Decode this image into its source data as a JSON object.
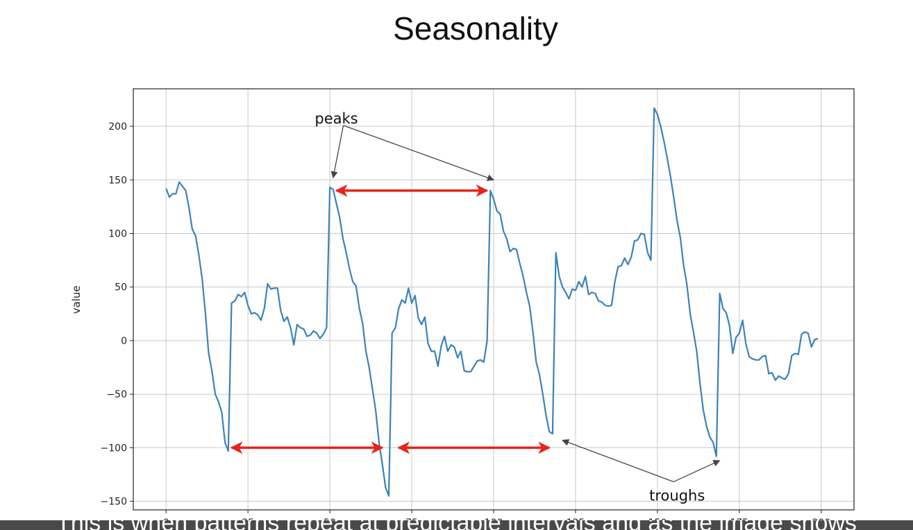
{
  "slide": {
    "title": "Seasonality",
    "caption": "This is when patterns repeat at predictable intervals and as the image shows"
  },
  "chart_data": {
    "type": "line",
    "title": "",
    "xlabel": "",
    "ylabel": "value",
    "xlim": [
      -10,
      210
    ],
    "ylim": [
      -158,
      235
    ],
    "xticks": [
      0,
      25,
      50,
      75,
      100,
      125,
      150,
      175,
      200
    ],
    "yticks": [
      -150,
      -100,
      -50,
      0,
      50,
      100,
      150,
      200
    ],
    "grid": true,
    "line_color": "#3a82b8",
    "x": [
      0,
      1,
      2,
      3,
      4,
      5,
      6,
      7,
      8,
      9,
      10,
      11,
      12,
      13,
      14,
      15,
      16,
      17,
      18,
      19,
      20,
      21,
      22,
      23,
      24,
      25,
      26,
      27,
      28,
      29,
      30,
      31,
      32,
      33,
      34,
      35,
      36,
      37,
      38,
      39,
      40,
      41,
      42,
      43,
      44,
      45,
      46,
      47,
      48,
      49,
      50,
      51,
      52,
      53,
      54,
      55,
      56,
      57,
      58,
      59,
      60,
      61,
      62,
      63,
      64,
      65,
      66,
      67,
      68,
      69,
      70,
      71,
      72,
      73,
      74,
      75,
      76,
      77,
      78,
      79,
      80,
      81,
      82,
      83,
      84,
      85,
      86,
      87,
      88,
      89,
      90,
      91,
      92,
      93,
      94,
      95,
      96,
      97,
      98,
      99,
      100,
      101,
      102,
      103,
      104,
      105,
      106,
      107,
      108,
      109,
      110,
      111,
      112,
      113,
      114,
      115,
      116,
      117,
      118,
      119,
      120,
      121,
      122,
      123,
      124,
      125,
      126,
      127,
      128,
      129,
      130,
      131,
      132,
      133,
      134,
      135,
      136,
      137,
      138,
      139,
      140,
      141,
      142,
      143,
      144,
      145,
      146,
      147,
      148,
      149,
      150,
      151,
      152,
      153,
      154,
      155,
      156,
      157,
      158,
      159,
      160,
      161,
      162,
      163,
      164,
      165,
      166,
      167,
      168,
      169,
      170,
      171,
      172,
      173,
      174,
      175,
      176,
      177,
      178,
      179,
      180,
      181,
      182,
      183,
      184,
      185,
      186,
      187,
      188,
      189,
      190,
      191,
      192,
      193,
      194,
      195,
      196,
      197,
      198,
      199
    ],
    "series": [
      {
        "values": [
          142,
          134,
          137,
          137,
          148,
          144,
          140,
          124,
          104,
          98,
          80,
          58,
          26,
          -12,
          -28,
          -50,
          -57,
          -67,
          -95,
          -103,
          35,
          37,
          43,
          41,
          45,
          33,
          25,
          26,
          24,
          19,
          30,
          53,
          48,
          49,
          49,
          28,
          18,
          22,
          12,
          -4,
          15,
          12,
          11,
          4,
          5,
          9,
          7,
          2,
          6,
          12,
          143,
          141,
          128,
          115,
          95,
          82,
          67,
          55,
          51,
          30,
          16,
          -10,
          -25,
          -45,
          -65,
          -95,
          -115,
          -137,
          -145,
          7,
          12,
          30,
          38,
          35,
          49,
          35,
          42,
          21,
          15,
          22,
          -3,
          -10,
          -10,
          -24,
          -5,
          4,
          -10,
          -4,
          -6,
          -16,
          -10,
          -28,
          -29,
          -29,
          -24,
          -19,
          -18,
          -20,
          0,
          140,
          132,
          121,
          118,
          102,
          95,
          83,
          86,
          85,
          72,
          60,
          45,
          32,
          8,
          -20,
          -32,
          -50,
          -70,
          -85,
          -87,
          82,
          60,
          50,
          45,
          39,
          48,
          47,
          55,
          50,
          60,
          43,
          45,
          44,
          37,
          36,
          33,
          32,
          33,
          55,
          69,
          70,
          77,
          71,
          78,
          93,
          94,
          100,
          99,
          82,
          75,
          217,
          211,
          200,
          186,
          170,
          153,
          133,
          112,
          96,
          70,
          52,
          25,
          8,
          -10,
          -40,
          -65,
          -80,
          -90,
          -95,
          -108,
          44,
          30,
          26,
          14,
          -12,
          3,
          7,
          19,
          -3,
          -15,
          -17,
          -18,
          -18,
          -15,
          -14,
          -31,
          -30,
          -37,
          -33,
          -35,
          -36,
          -31,
          -14,
          -12,
          -13,
          6,
          8,
          7,
          -6,
          1,
          2
        ]
      }
    ],
    "annotations": [
      {
        "text": "peaks",
        "text_xy": [
          52,
          206
        ],
        "targets": [
          [
            51,
            152
          ],
          [
            100,
            150
          ]
        ]
      },
      {
        "text": "troughs",
        "text_xy": [
          156,
          -146
        ],
        "targets": [
          [
            121,
            -93
          ],
          [
            169,
            -112
          ]
        ]
      }
    ],
    "interval_arrows": [
      {
        "from": [
          20,
          -100
        ],
        "to": [
          66,
          -100
        ]
      },
      {
        "from": [
          71,
          -100
        ],
        "to": [
          117,
          -100
        ]
      },
      {
        "from": [
          52,
          140
        ],
        "to": [
          98,
          140
        ]
      }
    ],
    "arrow_color": "#e8231a"
  }
}
